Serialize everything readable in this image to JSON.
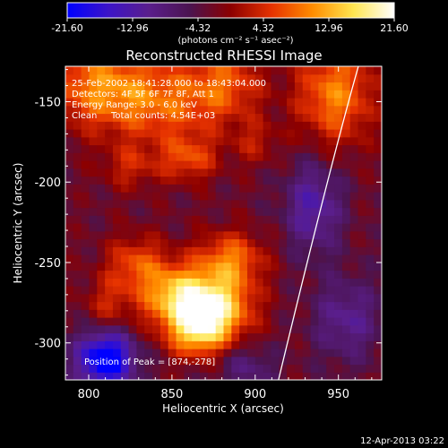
{
  "colorbar": {
    "ticks": [
      "-21.60",
      "-12.96",
      "-4.32",
      "4.32",
      "12.96",
      "21.60"
    ],
    "units": "(photons cm⁻² s⁻¹ asec⁻²)",
    "colors": [
      "#0000ff",
      "#3c14c8",
      "#5a1e8c",
      "#4b1450",
      "#8c0000",
      "#e63200",
      "#ff8c00",
      "#ffe650",
      "#ffffff"
    ]
  },
  "annotations": {
    "time": "25-Feb-2002 18:41:28.000 to 18:43:04.000",
    "detectors": "Detectors: 4F 5F 6F 7F 8F, Att 1",
    "energy": "Energy Range: 3.0 - 6.0 keV",
    "algorithm": "Clean",
    "counts": "Total counts: 4.54E+03",
    "peak": "Position of Peak = [874,-278]"
  },
  "timestamp": "12-Apr-2013 03:22",
  "chart_data": {
    "type": "heatmap",
    "title": "Reconstructed RHESSI Image",
    "xlabel": "Heliocentric X (arcsec)",
    "ylabel": "Heliocentric Y (arcsec)",
    "xlim": [
      786,
      976
    ],
    "ylim": [
      -323,
      -128
    ],
    "x_ticks": [
      800,
      850,
      900,
      950
    ],
    "y_ticks": [
      -150,
      -200,
      -250,
      -300
    ],
    "color_range": [
      -21.6,
      21.6
    ],
    "peak": [
      874,
      -278
    ],
    "limb": [
      [
        914,
        -323
      ],
      [
        945,
        -190
      ],
      [
        962,
        -128
      ]
    ],
    "blobs": [
      {
        "x": 874,
        "y": -278,
        "sx": 16,
        "sy": 14,
        "amp": 22
      },
      {
        "x": 850,
        "y": -270,
        "sx": 14,
        "sy": 14,
        "amp": 14
      },
      {
        "x": 885,
        "y": -248,
        "sx": 14,
        "sy": 12,
        "amp": 12
      },
      {
        "x": 865,
        "y": -295,
        "sx": 12,
        "sy": 10,
        "amp": 12
      },
      {
        "x": 828,
        "y": -250,
        "sx": 12,
        "sy": 12,
        "amp": 9
      },
      {
        "x": 812,
        "y": -275,
        "sx": 10,
        "sy": 12,
        "amp": 6
      },
      {
        "x": 805,
        "y": -140,
        "sx": 22,
        "sy": 18,
        "amp": 12
      },
      {
        "x": 845,
        "y": -150,
        "sx": 24,
        "sy": 18,
        "amp": 10
      },
      {
        "x": 882,
        "y": -138,
        "sx": 16,
        "sy": 16,
        "amp": 9
      },
      {
        "x": 948,
        "y": -145,
        "sx": 16,
        "sy": 22,
        "amp": 13
      },
      {
        "x": 860,
        "y": -185,
        "sx": 12,
        "sy": 10,
        "amp": 9
      },
      {
        "x": 825,
        "y": -190,
        "sx": 12,
        "sy": 10,
        "amp": 6
      },
      {
        "x": 900,
        "y": -175,
        "sx": 10,
        "sy": 10,
        "amp": 5
      },
      {
        "x": 810,
        "y": -310,
        "sx": 12,
        "sy": 12,
        "amp": -22
      },
      {
        "x": 935,
        "y": -215,
        "sx": 12,
        "sy": 20,
        "amp": -10
      },
      {
        "x": 955,
        "y": -285,
        "sx": 14,
        "sy": 18,
        "amp": -8
      },
      {
        "x": 895,
        "y": -315,
        "sx": 12,
        "sy": 10,
        "amp": -6
      }
    ]
  }
}
